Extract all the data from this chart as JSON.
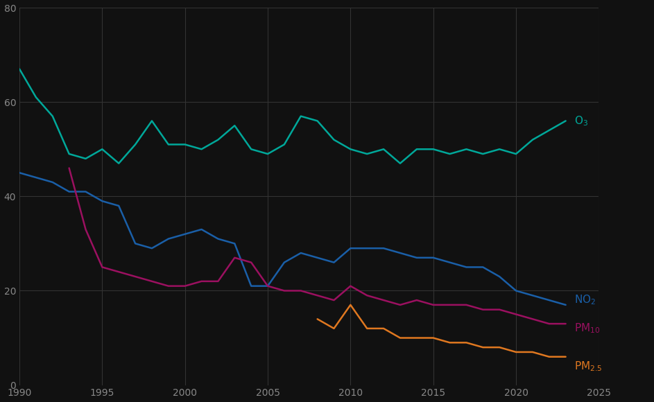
{
  "years": [
    1990,
    1991,
    1992,
    1993,
    1994,
    1995,
    1996,
    1997,
    1998,
    1999,
    2000,
    2001,
    2002,
    2003,
    2004,
    2005,
    2006,
    2007,
    2008,
    2009,
    2010,
    2011,
    2012,
    2013,
    2014,
    2015,
    2016,
    2017,
    2018,
    2019,
    2020,
    2021,
    2022,
    2023
  ],
  "O3": [
    67,
    61,
    57,
    49,
    48,
    50,
    47,
    51,
    56,
    51,
    51,
    50,
    52,
    55,
    50,
    49,
    51,
    57,
    56,
    52,
    50,
    49,
    50,
    47,
    50,
    50,
    49,
    50,
    49,
    50,
    49,
    52,
    54,
    56
  ],
  "NO2": [
    45,
    44,
    43,
    41,
    41,
    39,
    38,
    30,
    29,
    31,
    32,
    33,
    31,
    30,
    21,
    21,
    26,
    28,
    27,
    26,
    29,
    29,
    29,
    28,
    27,
    27,
    26,
    25,
    25,
    23,
    20,
    19,
    18,
    17
  ],
  "PM10": [
    null,
    null,
    null,
    46,
    33,
    25,
    24,
    23,
    22,
    21,
    21,
    22,
    22,
    27,
    26,
    21,
    20,
    20,
    19,
    18,
    21,
    19,
    18,
    17,
    18,
    17,
    17,
    17,
    16,
    16,
    15,
    14,
    13,
    13
  ],
  "PM25": [
    null,
    null,
    null,
    null,
    null,
    null,
    null,
    null,
    null,
    null,
    null,
    null,
    null,
    null,
    null,
    null,
    null,
    null,
    14,
    12,
    17,
    12,
    12,
    10,
    10,
    10,
    9,
    9,
    8,
    8,
    7,
    7,
    6,
    6
  ],
  "O3_color": "#00a89a",
  "NO2_color": "#1a5fa8",
  "PM10_color": "#9b1060",
  "PM25_color": "#e07820",
  "background_color": "#111111",
  "grid_color": "#333333",
  "text_color": "#888888",
  "ylim": [
    0,
    80
  ],
  "yticks": [
    0,
    20,
    40,
    60,
    80
  ],
  "xlim": [
    1990,
    2025
  ],
  "xticks": [
    1990,
    1995,
    2000,
    2005,
    2010,
    2015,
    2020,
    2025
  ],
  "line_width": 1.8,
  "label_fontsize": 11
}
